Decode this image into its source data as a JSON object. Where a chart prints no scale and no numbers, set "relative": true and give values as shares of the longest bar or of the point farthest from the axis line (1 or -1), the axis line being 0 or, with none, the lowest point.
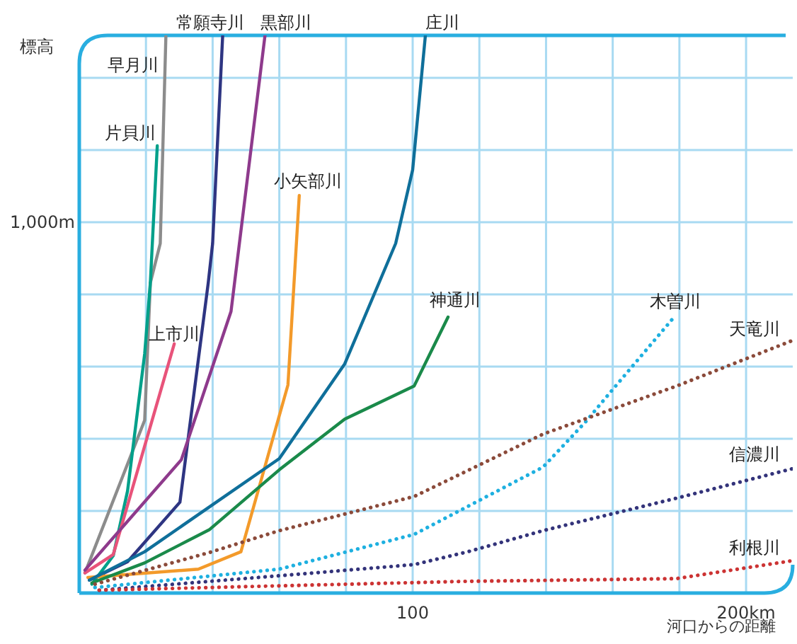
{
  "chart_data": {
    "type": "line",
    "ylabel": "標高",
    "xlabel": "河口からの距離",
    "relative": true,
    "xlim": [
      0,
      214
    ],
    "xticks": [
      {
        "value": 20,
        "label": null
      },
      {
        "value": 40,
        "label": null
      },
      {
        "value": 60,
        "label": null
      },
      {
        "value": 80,
        "label": null
      },
      {
        "value": 100,
        "label": "100"
      },
      {
        "value": 120,
        "label": null
      },
      {
        "value": 140,
        "label": null
      },
      {
        "value": 160,
        "label": null
      },
      {
        "value": 180,
        "label": null
      },
      {
        "value": 200,
        "label": "200km"
      }
    ],
    "annotations": [
      "1,000m"
    ],
    "grid": true,
    "legend": false,
    "marker": "none",
    "series": [
      {
        "name": "早月川",
        "color": "#8c8c8c",
        "line_style": "solid",
        "x": [
          1.7,
          19.6,
          21.3,
          24.3,
          26
        ],
        "values": [
          0.036,
          0.31,
          0.556,
          0.627,
          1
        ]
      },
      {
        "name": "片貝川",
        "color": "#00a08a",
        "line_style": "solid",
        "x": [
          3.8,
          10.2,
          14.5,
          19.6,
          21.3,
          23.4
        ],
        "values": [
          0.016,
          0.067,
          0.183,
          0.429,
          0.556,
          0.802
        ]
      },
      {
        "name": "上市川",
        "color": "#e8537a",
        "line_style": "solid",
        "x": [
          1.7,
          10.2,
          28.5
        ],
        "values": [
          0.036,
          0.069,
          0.447
        ]
      },
      {
        "name": "常願寺川",
        "color": "#2e3582",
        "line_style": "solid",
        "x": [
          3,
          14.5,
          30.2,
          38.7,
          40,
          43
        ],
        "values": [
          0.023,
          0.056,
          0.163,
          0.556,
          0.627,
          1
        ]
      },
      {
        "name": "黒部川",
        "color": "#8e3a8c",
        "line_style": "solid",
        "x": [
          1.7,
          30.6,
          45.5,
          55.7
        ],
        "values": [
          0.041,
          0.239,
          0.505,
          1
        ]
      },
      {
        "name": "小矢部川",
        "color": "#f39a2a",
        "line_style": "solid",
        "x": [
          2.6,
          35.7,
          48.5,
          62.6,
          66
        ],
        "values": [
          0.028,
          0.043,
          0.074,
          0.373,
          0.713
        ]
      },
      {
        "name": "庄川",
        "color": "#0f6f9a",
        "line_style": "solid",
        "x": [
          3,
          19.6,
          60,
          79.6,
          94.9,
          100,
          103.8
        ],
        "values": [
          0.023,
          0.074,
          0.241,
          0.411,
          0.627,
          0.759,
          1
        ]
      },
      {
        "name": "神通川",
        "color": "#1a8a4a",
        "line_style": "solid",
        "x": [
          3.8,
          19.6,
          39.1,
          60,
          79.6,
          100.4,
          110.6
        ],
        "values": [
          0.018,
          0.054,
          0.114,
          0.221,
          0.312,
          0.371,
          0.495
        ]
      },
      {
        "name": "木曽川",
        "color": "#1eb0e0",
        "line_style": "dotted",
        "x": [
          4.7,
          60,
          100.4,
          139.1,
          151.9,
          160,
          178.7
        ],
        "values": [
          0.01,
          0.043,
          0.105,
          0.226,
          0.307,
          0.365,
          0.497
        ]
      },
      {
        "name": "天竜川",
        "color": "#8b4a3a",
        "line_style": "dotted",
        "x": [
          4.7,
          38.7,
          60,
          100.4,
          139.1,
          179.1,
          214
        ],
        "values": [
          0.016,
          0.072,
          0.112,
          0.173,
          0.285,
          0.371,
          0.453
        ]
      },
      {
        "name": "信濃川",
        "color": "#33337a",
        "line_style": "dotted",
        "x": [
          6,
          60,
          100.4,
          116.6,
          139.1,
          179.1,
          214
        ],
        "values": [
          0.005,
          0.031,
          0.051,
          0.074,
          0.112,
          0.17,
          0.223
        ]
      },
      {
        "name": "利根川",
        "color": "#cc3333",
        "line_style": "dotted",
        "x": [
          6,
          60,
          116.6,
          179.1,
          214
        ],
        "values": [
          0.005,
          0.013,
          0.021,
          0.026,
          0.058
        ]
      }
    ]
  }
}
